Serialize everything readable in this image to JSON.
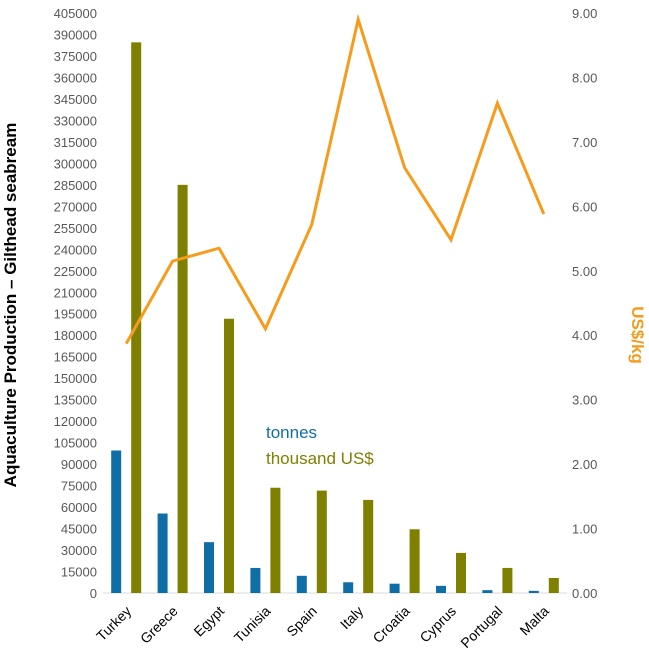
{
  "chart_data": {
    "type": "bar",
    "categories": [
      "Turkey",
      "Greece",
      "Egypt",
      "Tunisia",
      "Spain",
      "Italy",
      "Croatia",
      "Cyprus",
      "Portugal",
      "Malta"
    ],
    "series": [
      {
        "name": "tonnes",
        "kind": "bar",
        "axis": "left",
        "color": "#0f6ea6",
        "values": [
          99500,
          55500,
          35500,
          17500,
          12000,
          7500,
          6500,
          5000,
          2000,
          1500
        ]
      },
      {
        "name": "thousand US$",
        "kind": "bar",
        "axis": "left",
        "color": "#7f7f00",
        "values": [
          384500,
          285000,
          191500,
          73500,
          71500,
          65000,
          44500,
          28000,
          17500,
          10500
        ]
      },
      {
        "name": "US$/kg",
        "kind": "line",
        "axis": "right",
        "color": "#f79b1c",
        "values": [
          3.87,
          5.15,
          5.35,
          4.1,
          5.72,
          8.9,
          6.6,
          5.48,
          7.6,
          5.88
        ]
      }
    ],
    "ylabel": "Aquaculture Production – Gilthead seabream",
    "y2label": "US$/kg",
    "ylim": [
      0,
      405000
    ],
    "y2lim": [
      0,
      9
    ],
    "yticks": [
      "0",
      "15000",
      "30000",
      "45000",
      "60000",
      "75000",
      "90000",
      "105000",
      "120000",
      "135000",
      "150000",
      "165000",
      "180000",
      "195000",
      "210000",
      "225000",
      "240000",
      "255000",
      "270000",
      "285000",
      "300000",
      "315000",
      "330000",
      "345000",
      "360000",
      "375000",
      "390000",
      "405000"
    ],
    "y2ticks": [
      "0.00",
      "1.00",
      "2.00",
      "3.00",
      "4.00",
      "5.00",
      "6.00",
      "7.00",
      "8.00",
      "9.00"
    ],
    "legend": {
      "position": "middle-left",
      "items": [
        "tonnes",
        "thousand US$"
      ]
    },
    "grid": false
  }
}
